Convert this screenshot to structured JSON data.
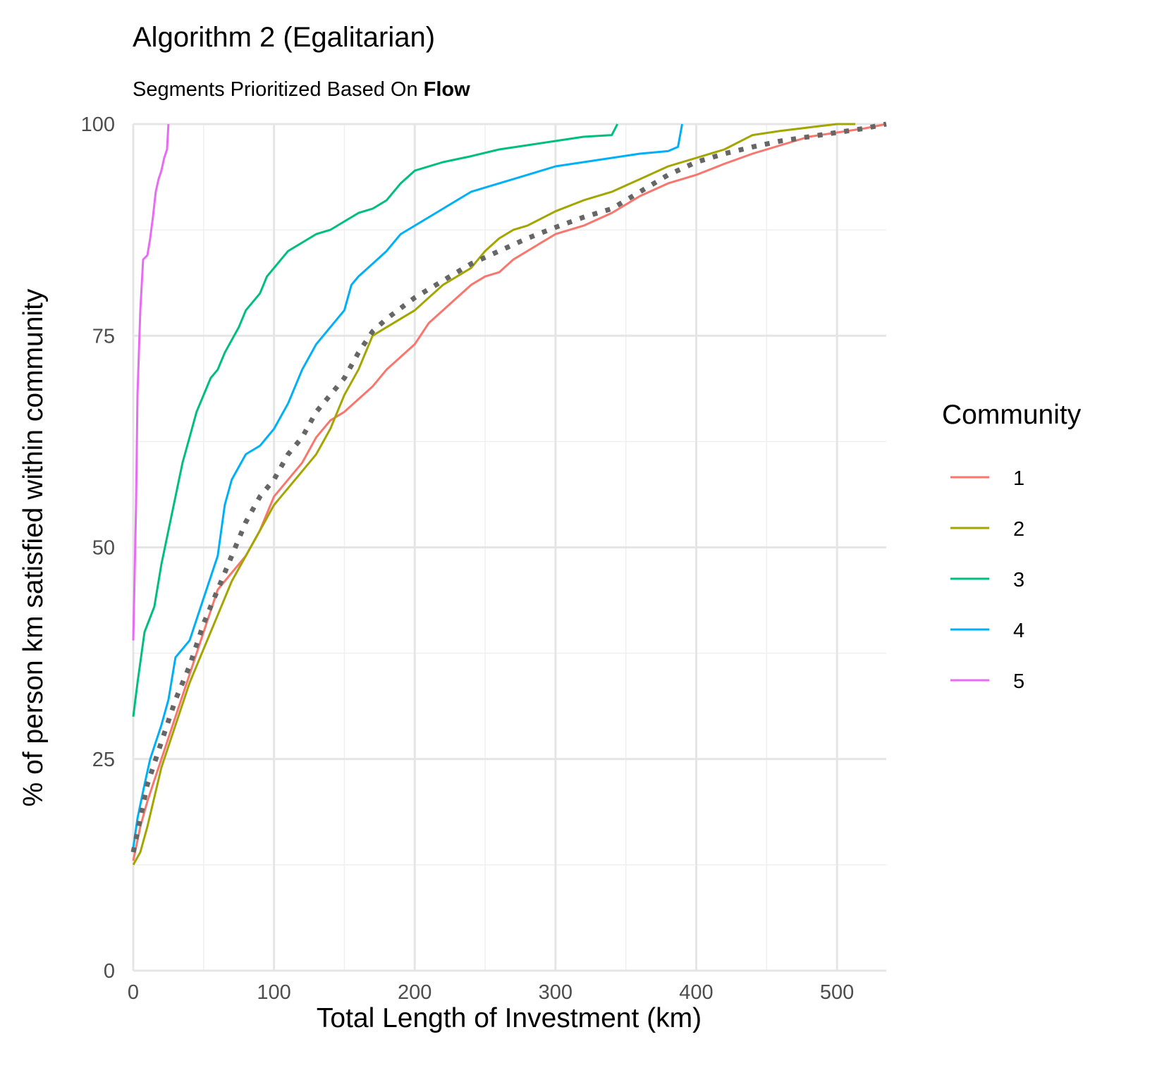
{
  "chart_data": {
    "type": "line",
    "title": "Algorithm 2 (Egalitarian)",
    "subtitle_prefix": "Segments Prioritized Based On ",
    "subtitle_bold": "Flow",
    "xlabel": "Total Length of Investment (km)",
    "ylabel": "% of person km satisfied within community",
    "xlim": [
      0,
      535
    ],
    "ylim": [
      0,
      100
    ],
    "x_ticks": [
      "0",
      "100",
      "200",
      "300",
      "400",
      "500"
    ],
    "y_ticks": [
      "0",
      "25",
      "50",
      "75",
      "100"
    ],
    "grid": true,
    "legend_title": "Community",
    "legend_position": "right",
    "series": [
      {
        "name": "1",
        "color": "#F8766D",
        "points": [
          [
            0,
            13
          ],
          [
            5,
            17
          ],
          [
            10,
            20
          ],
          [
            20,
            25
          ],
          [
            30,
            30
          ],
          [
            40,
            35
          ],
          [
            50,
            40
          ],
          [
            60,
            45
          ],
          [
            70,
            47
          ],
          [
            80,
            49
          ],
          [
            90,
            52
          ],
          [
            100,
            56
          ],
          [
            110,
            58
          ],
          [
            120,
            60
          ],
          [
            130,
            63
          ],
          [
            140,
            65
          ],
          [
            150,
            66
          ],
          [
            160,
            67.5
          ],
          [
            170,
            69
          ],
          [
            180,
            71
          ],
          [
            190,
            72.5
          ],
          [
            200,
            74
          ],
          [
            210,
            76.5
          ],
          [
            220,
            78
          ],
          [
            240,
            81
          ],
          [
            250,
            82
          ],
          [
            260,
            82.5
          ],
          [
            270,
            84
          ],
          [
            280,
            85
          ],
          [
            300,
            87
          ],
          [
            320,
            88
          ],
          [
            340,
            89.5
          ],
          [
            350,
            90.5
          ],
          [
            360,
            91.5
          ],
          [
            380,
            93
          ],
          [
            400,
            94
          ],
          [
            420,
            95.3
          ],
          [
            440,
            96.5
          ],
          [
            460,
            97.5
          ],
          [
            480,
            98.5
          ],
          [
            500,
            99
          ],
          [
            520,
            99.5
          ],
          [
            535,
            100
          ]
        ]
      },
      {
        "name": "2",
        "color": "#A3A500",
        "points": [
          [
            0,
            12.5
          ],
          [
            5,
            14
          ],
          [
            10,
            17
          ],
          [
            20,
            24
          ],
          [
            30,
            29
          ],
          [
            40,
            34
          ],
          [
            50,
            38
          ],
          [
            60,
            42
          ],
          [
            70,
            46
          ],
          [
            80,
            49
          ],
          [
            90,
            52
          ],
          [
            100,
            55
          ],
          [
            110,
            57
          ],
          [
            120,
            59
          ],
          [
            130,
            61
          ],
          [
            140,
            64
          ],
          [
            150,
            68
          ],
          [
            160,
            71
          ],
          [
            170,
            75
          ],
          [
            180,
            76
          ],
          [
            190,
            77
          ],
          [
            200,
            78
          ],
          [
            210,
            79.5
          ],
          [
            220,
            81
          ],
          [
            240,
            83
          ],
          [
            250,
            85
          ],
          [
            260,
            86.5
          ],
          [
            270,
            87.5
          ],
          [
            280,
            88
          ],
          [
            300,
            89.7
          ],
          [
            320,
            91
          ],
          [
            340,
            92
          ],
          [
            360,
            93.5
          ],
          [
            380,
            95
          ],
          [
            400,
            96
          ],
          [
            420,
            97
          ],
          [
            440,
            98.7
          ],
          [
            460,
            99.2
          ],
          [
            480,
            99.6
          ],
          [
            500,
            100
          ],
          [
            513,
            100
          ]
        ]
      },
      {
        "name": "3",
        "color": "#00BF7D",
        "points": [
          [
            0,
            30
          ],
          [
            3,
            34
          ],
          [
            8,
            40
          ],
          [
            15,
            43
          ],
          [
            20,
            48
          ],
          [
            25,
            52
          ],
          [
            30,
            56
          ],
          [
            35,
            60
          ],
          [
            40,
            63
          ],
          [
            45,
            66
          ],
          [
            50,
            68
          ],
          [
            55,
            70
          ],
          [
            60,
            71
          ],
          [
            65,
            73
          ],
          [
            70,
            74.5
          ],
          [
            75,
            76
          ],
          [
            80,
            78
          ],
          [
            85,
            79
          ],
          [
            90,
            80
          ],
          [
            95,
            82
          ],
          [
            100,
            83
          ],
          [
            110,
            85
          ],
          [
            120,
            86
          ],
          [
            130,
            87
          ],
          [
            140,
            87.5
          ],
          [
            150,
            88.5
          ],
          [
            160,
            89.5
          ],
          [
            170,
            90
          ],
          [
            180,
            91
          ],
          [
            190,
            93
          ],
          [
            200,
            94.5
          ],
          [
            220,
            95.5
          ],
          [
            240,
            96.2
          ],
          [
            260,
            97
          ],
          [
            280,
            97.5
          ],
          [
            300,
            98
          ],
          [
            320,
            98.5
          ],
          [
            340,
            98.7
          ],
          [
            344,
            100
          ]
        ]
      },
      {
        "name": "4",
        "color": "#00B0F6",
        "points": [
          [
            0,
            14.5
          ],
          [
            3,
            18
          ],
          [
            8,
            22
          ],
          [
            12,
            25
          ],
          [
            20,
            29
          ],
          [
            25,
            32
          ],
          [
            30,
            37
          ],
          [
            40,
            39
          ],
          [
            50,
            44
          ],
          [
            60,
            49
          ],
          [
            65,
            55
          ],
          [
            70,
            58
          ],
          [
            80,
            61
          ],
          [
            90,
            62
          ],
          [
            100,
            64
          ],
          [
            110,
            67
          ],
          [
            120,
            71
          ],
          [
            130,
            74
          ],
          [
            140,
            76
          ],
          [
            150,
            78
          ],
          [
            155,
            81
          ],
          [
            160,
            82
          ],
          [
            170,
            83.5
          ],
          [
            180,
            85
          ],
          [
            190,
            87
          ],
          [
            200,
            88
          ],
          [
            220,
            90
          ],
          [
            230,
            91
          ],
          [
            240,
            92
          ],
          [
            260,
            93
          ],
          [
            280,
            94
          ],
          [
            300,
            95
          ],
          [
            320,
            95.5
          ],
          [
            340,
            96
          ],
          [
            360,
            96.5
          ],
          [
            380,
            96.8
          ],
          [
            387,
            97.3
          ],
          [
            390,
            100
          ]
        ]
      },
      {
        "name": "5",
        "color": "#E76BF3",
        "points": [
          [
            0,
            39
          ],
          [
            2,
            55
          ],
          [
            3,
            68
          ],
          [
            5,
            78
          ],
          [
            7,
            84
          ],
          [
            10,
            84.5
          ],
          [
            12,
            86.5
          ],
          [
            14,
            89
          ],
          [
            16,
            92
          ],
          [
            18,
            93.5
          ],
          [
            20,
            94.5
          ],
          [
            22,
            96
          ],
          [
            24,
            97
          ],
          [
            25,
            100
          ]
        ]
      },
      {
        "name": "",
        "color": "#666666",
        "dashed": true,
        "points": [
          [
            0,
            14
          ],
          [
            5,
            18
          ],
          [
            10,
            22
          ],
          [
            20,
            27
          ],
          [
            30,
            32
          ],
          [
            40,
            36
          ],
          [
            50,
            41
          ],
          [
            60,
            45
          ],
          [
            70,
            49
          ],
          [
            80,
            53
          ],
          [
            90,
            56
          ],
          [
            100,
            58
          ],
          [
            110,
            61
          ],
          [
            120,
            63
          ],
          [
            130,
            66
          ],
          [
            140,
            68
          ],
          [
            150,
            70
          ],
          [
            160,
            73
          ],
          [
            170,
            75.5
          ],
          [
            180,
            77
          ],
          [
            200,
            79.5
          ],
          [
            220,
            81.5
          ],
          [
            240,
            83.5
          ],
          [
            260,
            85
          ],
          [
            280,
            86.5
          ],
          [
            300,
            87.8
          ],
          [
            320,
            89
          ],
          [
            340,
            90
          ],
          [
            360,
            92
          ],
          [
            380,
            94
          ],
          [
            400,
            95.5
          ],
          [
            420,
            96.5
          ],
          [
            440,
            97.3
          ],
          [
            460,
            98
          ],
          [
            480,
            98.5
          ],
          [
            500,
            99
          ],
          [
            520,
            99.5
          ],
          [
            535,
            100
          ]
        ]
      }
    ]
  }
}
